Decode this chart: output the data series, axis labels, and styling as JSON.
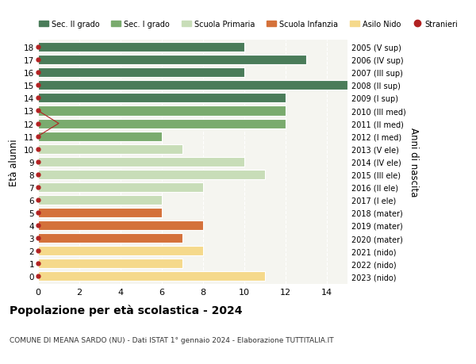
{
  "ages": [
    18,
    17,
    16,
    15,
    14,
    13,
    12,
    11,
    10,
    9,
    8,
    7,
    6,
    5,
    4,
    3,
    2,
    1,
    0
  ],
  "right_labels": [
    "2005 (V sup)",
    "2006 (IV sup)",
    "2007 (III sup)",
    "2008 (II sup)",
    "2009 (I sup)",
    "2010 (III med)",
    "2011 (II med)",
    "2012 (I med)",
    "2013 (V ele)",
    "2014 (IV ele)",
    "2015 (III ele)",
    "2016 (II ele)",
    "2017 (I ele)",
    "2018 (mater)",
    "2019 (mater)",
    "2020 (mater)",
    "2021 (nido)",
    "2022 (nido)",
    "2023 (nido)"
  ],
  "values": [
    10,
    13,
    10,
    15,
    12,
    12,
    12,
    6,
    7,
    10,
    11,
    8,
    6,
    6,
    8,
    7,
    8,
    7,
    11
  ],
  "stranieri_values": [
    0,
    0,
    0,
    0,
    0,
    0,
    1,
    0,
    0,
    0,
    0,
    0,
    0,
    0,
    0,
    0,
    0,
    0,
    0
  ],
  "bar_colors": [
    "#4a7c59",
    "#4a7c59",
    "#4a7c59",
    "#4a7c59",
    "#4a7c59",
    "#7aab6e",
    "#7aab6e",
    "#7aab6e",
    "#c8ddb8",
    "#c8ddb8",
    "#c8ddb8",
    "#c8ddb8",
    "#c8ddb8",
    "#d4713a",
    "#d4713a",
    "#d4713a",
    "#f5d98b",
    "#f5d98b",
    "#f5d98b"
  ],
  "legend_labels": [
    "Sec. II grado",
    "Sec. I grado",
    "Scuola Primaria",
    "Scuola Infanzia",
    "Asilo Nido",
    "Stranieri"
  ],
  "legend_colors": [
    "#4a7c59",
    "#7aab6e",
    "#c8ddb8",
    "#d4713a",
    "#f5d98b",
    "#b22222"
  ],
  "title": "Popolazione per età scolastica - 2024",
  "subtitle": "COMUNE DI MEANA SARDO (NU) - Dati ISTAT 1° gennaio 2024 - Elaborazione TUTTITALIA.IT",
  "ylabel": "Età alunni",
  "right_ylabel": "Anni di nascita",
  "xlim": [
    0,
    15
  ],
  "plot_bg": "#f5f5f0",
  "grid_color": "#ffffff"
}
